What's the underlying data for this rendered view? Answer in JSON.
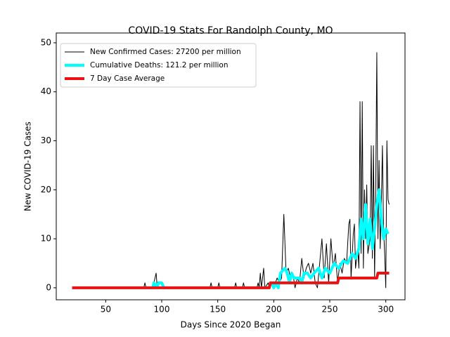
{
  "chart_data": {
    "type": "line",
    "title": "COVID-19 Stats For Randolph County, MO",
    "xlabel": "Days Since 2020 Began",
    "ylabel": "New COVID-19 Cases",
    "xlim": [
      5.85,
      317.15
    ],
    "ylim": [
      -2.45,
      52.0
    ],
    "xticks": [
      50,
      100,
      150,
      200,
      250,
      300
    ],
    "yticks": [
      0,
      10,
      20,
      30,
      40,
      50
    ],
    "legend": "upper left",
    "series": [
      {
        "name": "New Confirmed Cases: 27200 per million",
        "color": "#000000",
        "width": 1,
        "x": [
          20,
          84,
          85,
          86,
          92,
          93,
          94,
          95,
          96,
          100,
          101,
          102,
          143,
          144,
          145,
          150,
          151,
          152,
          165,
          166,
          167,
          172,
          173,
          174,
          185,
          186,
          187,
          188,
          189,
          191,
          192,
          195,
          196,
          198,
          200,
          203,
          205,
          207,
          209,
          211,
          213,
          215,
          217,
          219,
          221,
          223,
          225,
          227,
          229,
          231,
          233,
          235,
          237,
          239,
          241,
          243,
          245,
          247,
          249,
          251,
          253,
          255,
          257,
          259,
          261,
          263,
          265,
          267,
          268,
          269,
          271,
          272,
          273,
          275,
          276,
          277,
          278,
          279,
          280,
          281,
          282,
          283,
          284,
          286,
          287,
          288,
          289,
          290,
          291,
          292,
          293,
          294,
          295,
          296,
          297,
          298,
          299,
          300,
          301,
          302,
          303
        ],
        "values": [
          0,
          0,
          1,
          0,
          0,
          1,
          2,
          3,
          0,
          0,
          1,
          0,
          0,
          1,
          0,
          0,
          1,
          0,
          0,
          1,
          0,
          0,
          1,
          0,
          0,
          1,
          0,
          3,
          0,
          4,
          0,
          1,
          0,
          1,
          0,
          2,
          1,
          2,
          15,
          3,
          4,
          2,
          3,
          0,
          2,
          1,
          6,
          2,
          4,
          5,
          3,
          5,
          1,
          0,
          5,
          10,
          2,
          9,
          1,
          10,
          4,
          7,
          1,
          5,
          3,
          6,
          5,
          13,
          14,
          2,
          11,
          13,
          4,
          8,
          4,
          38,
          7,
          38,
          4,
          20,
          10,
          21,
          7,
          10,
          29,
          6,
          29,
          2,
          20,
          48,
          10,
          26,
          8,
          17,
          29,
          12,
          7,
          0,
          30,
          18,
          17
        ]
      },
      {
        "name": "Cumulative Deaths: 121.2 per million",
        "color": "#00ffff",
        "width": 4,
        "x": [
          20,
          92,
          93,
          96,
          97,
          100,
          102,
          195,
          198,
          200,
          202,
          204,
          206,
          208,
          210,
          212,
          214,
          216,
          218,
          220,
          223,
          225,
          227,
          230,
          233,
          236,
          240,
          243,
          246,
          250,
          254,
          258,
          262,
          266,
          270,
          273,
          276,
          278,
          280,
          282,
          284,
          286,
          288,
          290,
          292,
          294,
          296,
          298,
          300,
          302
        ],
        "values": [
          0,
          0,
          1,
          0,
          1,
          1,
          0,
          0,
          1,
          0,
          1,
          0,
          3,
          3.5,
          4,
          3,
          1,
          3,
          2,
          2,
          2,
          1,
          3,
          3,
          2,
          3,
          4,
          2,
          4,
          3,
          5,
          4,
          5.5,
          5,
          7,
          6,
          8,
          14,
          10,
          17,
          9,
          14,
          8,
          12,
          17,
          20,
          14,
          10,
          12,
          11
        ]
      },
      {
        "name": "7 Day Case Average",
        "color": "#ee1111",
        "width": 4,
        "x": [
          20,
          196,
          197,
          257,
          258,
          292,
          293,
          303
        ],
        "values": [
          0,
          0,
          1,
          1,
          2,
          2,
          3,
          3
        ]
      }
    ]
  }
}
